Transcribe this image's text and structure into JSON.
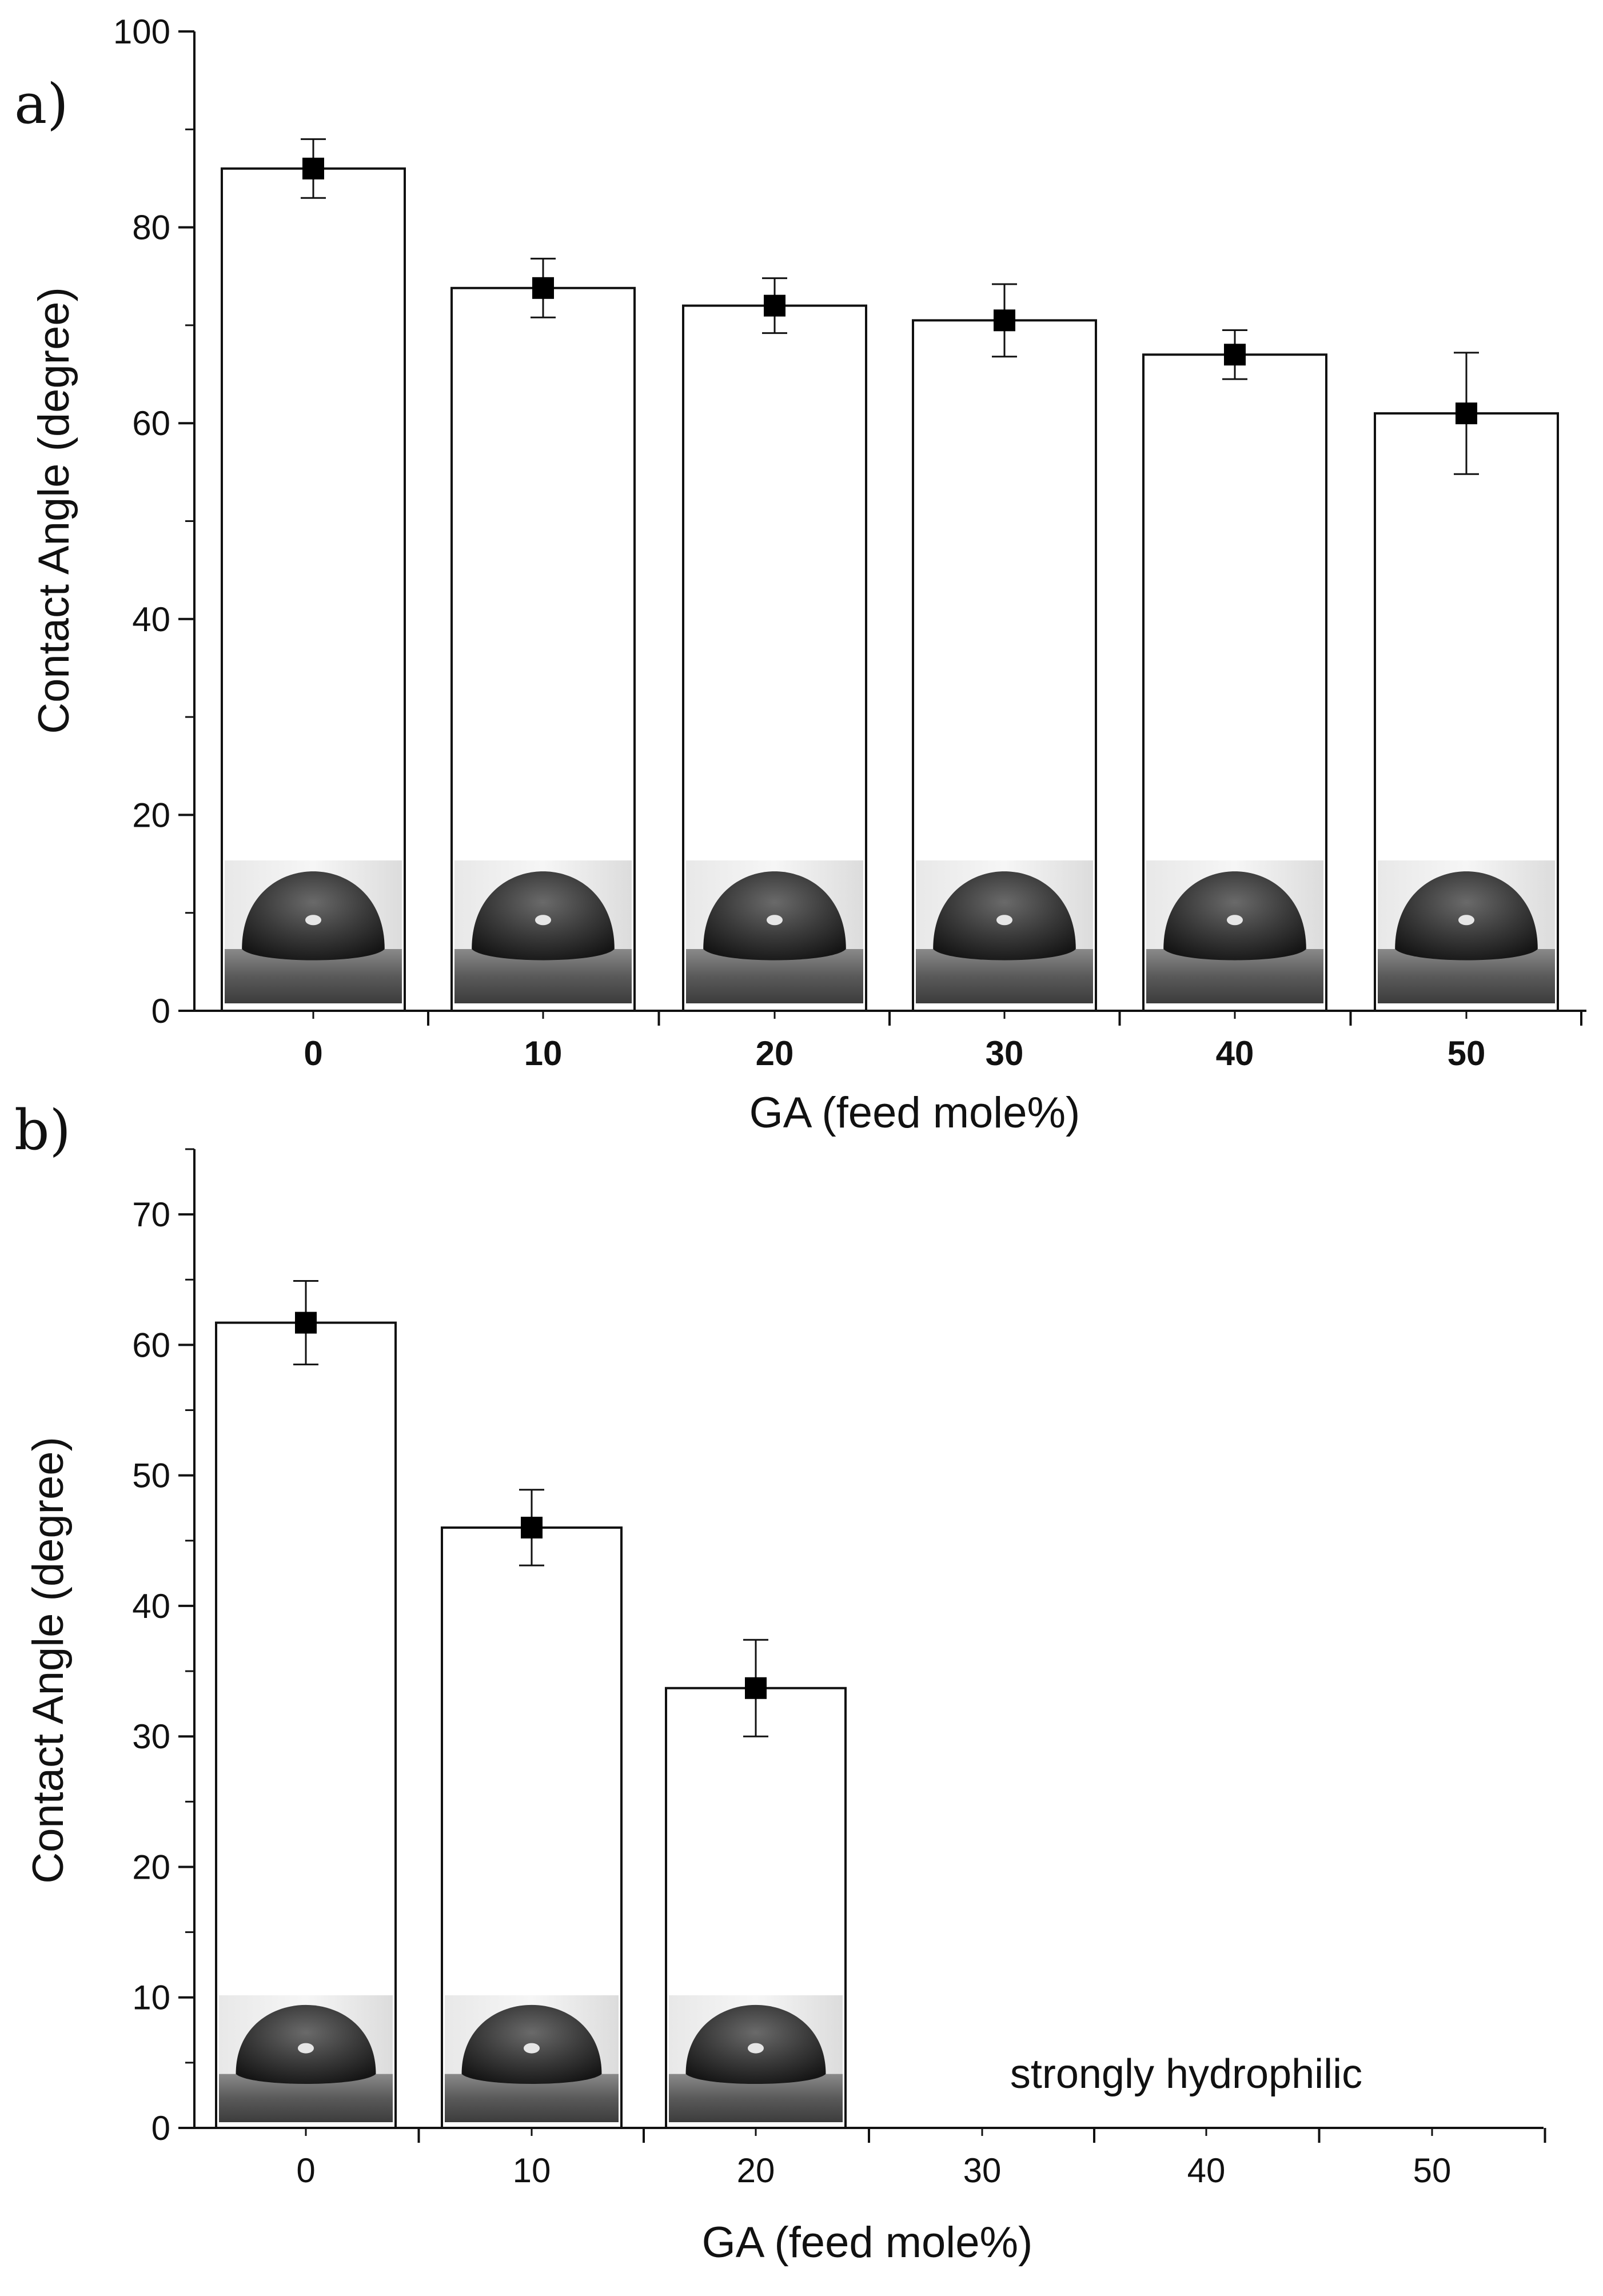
{
  "chart_data": [
    {
      "panel": "a)",
      "type": "bar",
      "categories": [
        "0",
        "10",
        "20",
        "30",
        "40",
        "50"
      ],
      "values": [
        86,
        73.8,
        72,
        70.5,
        67,
        61
      ],
      "errors": [
        3,
        3,
        2.8,
        3.7,
        2.5,
        6.2
      ],
      "xlabel": "GA (feed mole%)",
      "ylabel": "Contact Angle (degree)",
      "ylim": [
        0,
        100
      ],
      "yticks": [
        "0",
        "20",
        "40",
        "60",
        "80",
        "100"
      ],
      "droplet_insets": [
        true,
        true,
        true,
        true,
        true,
        true
      ],
      "annotation": "",
      "bold_tick_labels": true
    },
    {
      "panel": "b)",
      "type": "bar",
      "categories": [
        "0",
        "10",
        "20",
        "30",
        "40",
        "50"
      ],
      "values": [
        61.7,
        46,
        33.7,
        null,
        null,
        null
      ],
      "errors": [
        3.2,
        2.9,
        3.7,
        null,
        null,
        null
      ],
      "xlabel": "GA (feed mole%)",
      "ylabel": "Contact Angle (degree)",
      "ylim": [
        0,
        75
      ],
      "yticks": [
        "0",
        "10",
        "20",
        "30",
        "40",
        "50",
        "60",
        "70"
      ],
      "droplet_insets": [
        true,
        true,
        true,
        false,
        false,
        false
      ],
      "annotation": "strongly hydrophilic",
      "bold_tick_labels": false
    }
  ]
}
